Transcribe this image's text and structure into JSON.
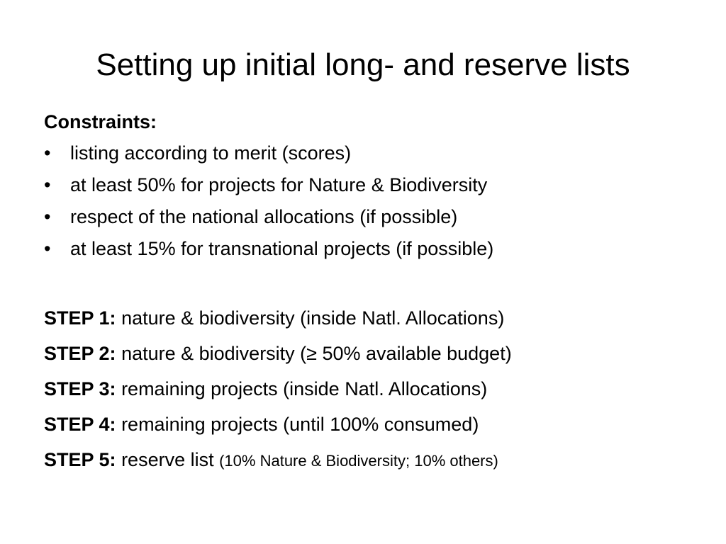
{
  "slide": {
    "title": "Setting up initial long- and reserve lists"
  },
  "constraints": {
    "heading": "Constraints:",
    "bullet_symbol": "•",
    "items": [
      "listing according to merit (scores)",
      "at least 50% for projects for Nature & Biodiversity",
      "respect of the national allocations (if possible)",
      "at least 15% for transnational projects (if possible)"
    ]
  },
  "steps": [
    {
      "label": "STEP 1:",
      "text": "nature & biodiversity (inside Natl. Allocations)",
      "note": ""
    },
    {
      "label": "STEP 2:",
      "text": "nature & biodiversity (≥ 50% available budget)",
      "note": ""
    },
    {
      "label": "STEP 3:",
      "text": "remaining projects (inside Natl. Allocations)",
      "note": ""
    },
    {
      "label": "STEP 4:",
      "text": "remaining projects (until 100% consumed)",
      "note": ""
    },
    {
      "label": "STEP 5:",
      "text": "reserve list",
      "note": "(10% Nature & Biodiversity; 10% others)"
    }
  ]
}
